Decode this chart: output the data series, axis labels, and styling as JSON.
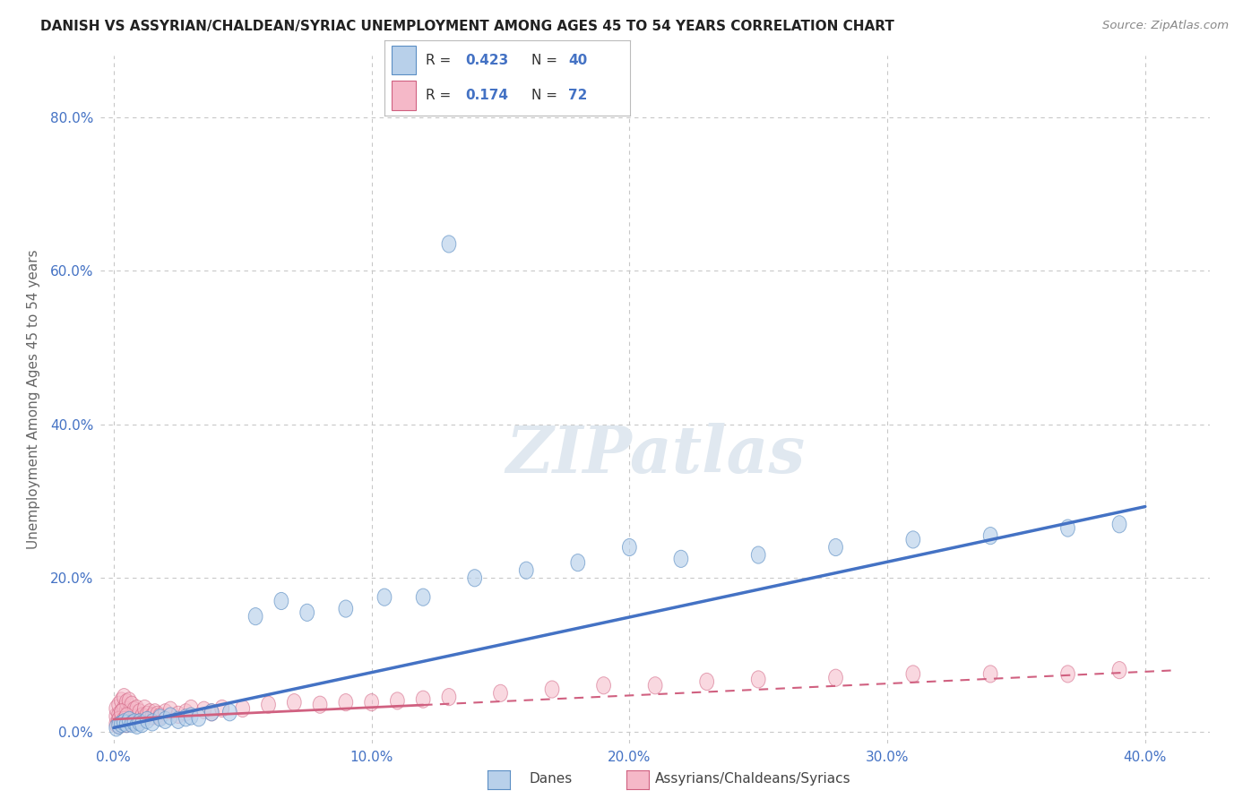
{
  "title": "DANISH VS ASSYRIAN/CHALDEAN/SYRIAC UNEMPLOYMENT AMONG AGES 45 TO 54 YEARS CORRELATION CHART",
  "source": "Source: ZipAtlas.com",
  "xlim": [
    -0.005,
    0.425
  ],
  "ylim": [
    -0.015,
    0.88
  ],
  "ylabel": "Unemployment Among Ages 45 to 54 years",
  "legend_r_blue": "R = 0.423",
  "legend_n_blue": "N = 40",
  "legend_r_pink": "R = 0.174",
  "legend_n_pink": "N = 72",
  "blue_fill": "#b8d0ea",
  "blue_edge": "#5b8ec4",
  "pink_fill": "#f5b8c8",
  "pink_edge": "#d06080",
  "blue_line": "#4472c4",
  "pink_line": "#d06080",
  "tick_color": "#4472c4",
  "grid_color": "#c8c8c8",
  "ylabel_color": "#666666",
  "background": "#ffffff",
  "watermark_color": "#e0e8f0",
  "danes_x": [
    0.001,
    0.002,
    0.003,
    0.004,
    0.005,
    0.006,
    0.007,
    0.008,
    0.009,
    0.01,
    0.011,
    0.013,
    0.015,
    0.018,
    0.02,
    0.022,
    0.025,
    0.028,
    0.03,
    0.033,
    0.038,
    0.045,
    0.055,
    0.065,
    0.075,
    0.09,
    0.105,
    0.12,
    0.14,
    0.16,
    0.18,
    0.2,
    0.22,
    0.25,
    0.28,
    0.31,
    0.34,
    0.37,
    0.39,
    0.13
  ],
  "danes_y": [
    0.005,
    0.008,
    0.01,
    0.012,
    0.01,
    0.015,
    0.01,
    0.012,
    0.008,
    0.012,
    0.01,
    0.015,
    0.012,
    0.018,
    0.015,
    0.02,
    0.015,
    0.018,
    0.02,
    0.018,
    0.025,
    0.025,
    0.15,
    0.17,
    0.155,
    0.16,
    0.175,
    0.175,
    0.2,
    0.21,
    0.22,
    0.24,
    0.225,
    0.23,
    0.24,
    0.25,
    0.255,
    0.265,
    0.27,
    0.635
  ],
  "assyrian_x": [
    0.001,
    0.001,
    0.001,
    0.002,
    0.002,
    0.002,
    0.002,
    0.003,
    0.003,
    0.003,
    0.003,
    0.004,
    0.004,
    0.004,
    0.004,
    0.005,
    0.005,
    0.005,
    0.005,
    0.006,
    0.006,
    0.006,
    0.007,
    0.007,
    0.007,
    0.008,
    0.008,
    0.009,
    0.009,
    0.01,
    0.01,
    0.011,
    0.012,
    0.012,
    0.013,
    0.014,
    0.015,
    0.016,
    0.017,
    0.018,
    0.02,
    0.022,
    0.025,
    0.028,
    0.03,
    0.035,
    0.038,
    0.042,
    0.05,
    0.06,
    0.07,
    0.08,
    0.09,
    0.1,
    0.11,
    0.12,
    0.13,
    0.15,
    0.17,
    0.19,
    0.21,
    0.23,
    0.25,
    0.28,
    0.31,
    0.34,
    0.37,
    0.39,
    0.002,
    0.003,
    0.004,
    0.005
  ],
  "assyrian_y": [
    0.01,
    0.02,
    0.03,
    0.008,
    0.015,
    0.022,
    0.035,
    0.01,
    0.018,
    0.025,
    0.04,
    0.012,
    0.02,
    0.03,
    0.045,
    0.01,
    0.018,
    0.028,
    0.038,
    0.015,
    0.025,
    0.04,
    0.012,
    0.022,
    0.035,
    0.015,
    0.028,
    0.018,
    0.03,
    0.015,
    0.025,
    0.02,
    0.018,
    0.03,
    0.022,
    0.025,
    0.02,
    0.025,
    0.022,
    0.02,
    0.025,
    0.028,
    0.022,
    0.025,
    0.03,
    0.028,
    0.025,
    0.03,
    0.03,
    0.035,
    0.038,
    0.035,
    0.038,
    0.038,
    0.04,
    0.042,
    0.045,
    0.05,
    0.055,
    0.06,
    0.06,
    0.065,
    0.068,
    0.07,
    0.075,
    0.075,
    0.075,
    0.08,
    0.015,
    0.025,
    0.015,
    0.02
  ]
}
